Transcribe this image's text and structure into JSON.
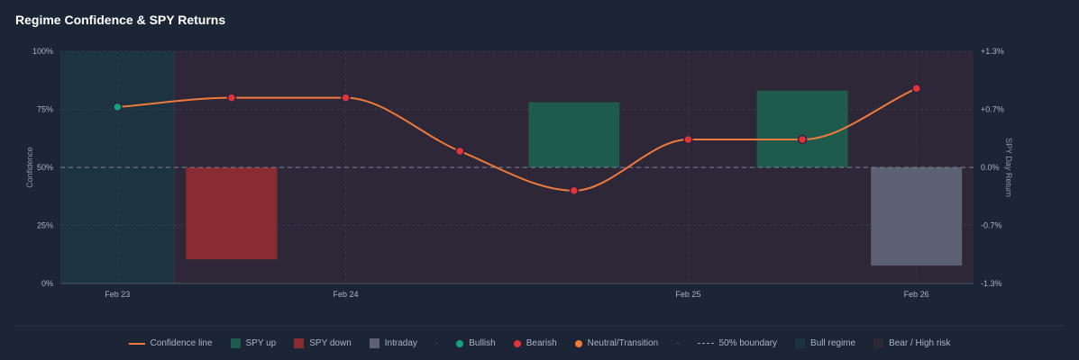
{
  "title": "Regime Confidence & SPY Returns",
  "chart_data": {
    "type": "line",
    "y_left_label": "Confidence",
    "y_right_label": "SPY Day Return",
    "y_left_ticks": [
      "100%",
      "75%",
      "50%",
      "25%",
      "0%"
    ],
    "y_right_ticks": [
      "+1.3%",
      "+0.7%",
      "0.0%",
      "-0.7%",
      "-1.3%"
    ],
    "y_left_range": [
      0,
      100
    ],
    "y_right_range": [
      -1.3,
      1.3
    ],
    "x_tick_labels": [
      "Feb 23",
      "Feb 24",
      "Feb 25",
      "Feb 26"
    ],
    "x_tick_positions": [
      0,
      2,
      5,
      7
    ],
    "x_range": [
      -0.5,
      7.5
    ],
    "boundary": 50,
    "regimes": [
      {
        "from": -0.5,
        "to": 0.5,
        "type": "bull"
      },
      {
        "from": 0.5,
        "to": 7.5,
        "type": "bear"
      }
    ],
    "confidence_points": [
      {
        "x": 0,
        "y": 76,
        "state": "bullish"
      },
      {
        "x": 1,
        "y": 80,
        "state": "bearish"
      },
      {
        "x": 2,
        "y": 80,
        "state": "bearish"
      },
      {
        "x": 3,
        "y": 57,
        "state": "bearish"
      },
      {
        "x": 4,
        "y": 40,
        "state": "bearish"
      },
      {
        "x": 5,
        "y": 62,
        "state": "bearish"
      },
      {
        "x": 6,
        "y": 62,
        "state": "bearish"
      },
      {
        "x": 7,
        "y": 84,
        "state": "bearish"
      }
    ],
    "spy_bars": [
      {
        "x": 1,
        "return": -1.03,
        "kind": "down"
      },
      {
        "x": 4,
        "return": 0.73,
        "kind": "up"
      },
      {
        "x": 6,
        "return": 0.86,
        "kind": "up"
      },
      {
        "x": 7,
        "return": -1.1,
        "kind": "intraday"
      }
    ],
    "grid": true,
    "legend_position": "bottom"
  },
  "legend": {
    "confidence_line": "Confidence line",
    "spy_up": "SPY up",
    "spy_down": "SPY down",
    "intraday": "Intraday",
    "sep": "·",
    "bullish": "Bullish",
    "bearish": "Bearish",
    "neutral": "Neutral/Transition",
    "boundary": "50% boundary",
    "bull_regime": "Bull regime",
    "bear_regime": "Bear / High risk"
  },
  "colors": {
    "line": "#f07a3c",
    "spy_up": "#1f5b4c",
    "spy_down": "#8a2b32",
    "intraday": "#5b6172",
    "bullish": "#14a37a",
    "bearish": "#e2323a",
    "neutral": "#f07a3c",
    "bull_regime": "#1c3340",
    "bear_regime": "#2e2737",
    "boundary": "#7b8394"
  }
}
